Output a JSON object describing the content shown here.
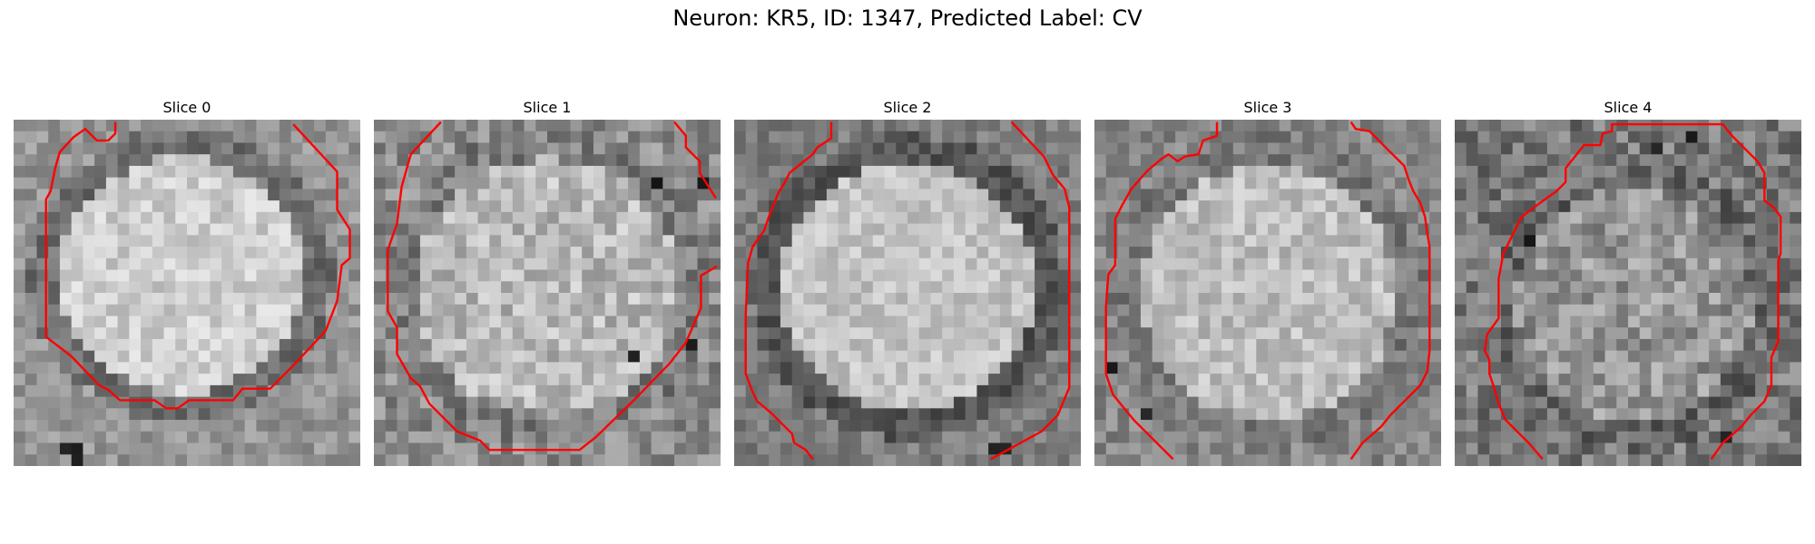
{
  "figure": {
    "title": "Neuron: KR5, ID: 1347, Predicted Label: CV"
  },
  "grid": {
    "cells": 30
  },
  "contour_color": "#ff0000",
  "slices": [
    {
      "label": "Slice 0",
      "seed": 11,
      "blob": {
        "cx": 14.5,
        "cy": 13.5,
        "rx": 12.5,
        "ry": 12,
        "ring": true,
        "bright": 205,
        "bg": 150,
        "noise": 28
      },
      "dark_spots": [
        [
          5,
          28
        ],
        [
          4,
          28
        ],
        [
          5,
          29
        ]
      ],
      "contours": [
        [
          [
            8.8,
            0.2
          ],
          [
            8.8,
            1.2
          ],
          [
            8.2,
            1.8
          ],
          [
            7.2,
            1.8
          ],
          [
            6.2,
            0.8
          ],
          [
            5.2,
            1.5
          ],
          [
            4,
            2.8
          ],
          [
            3.6,
            4.2
          ],
          [
            3.2,
            6.2
          ],
          [
            2.8,
            6.9
          ],
          [
            2.8,
            18.8
          ],
          [
            5,
            20.5
          ],
          [
            7.4,
            23
          ],
          [
            8.2,
            23.4
          ],
          [
            9.2,
            24.3
          ],
          [
            12.2,
            24.3
          ],
          [
            13.2,
            25
          ],
          [
            14.2,
            25
          ],
          [
            15.2,
            24.3
          ],
          [
            19,
            24.3
          ],
          [
            19.8,
            23.3
          ],
          [
            22.2,
            23.3
          ],
          [
            24.2,
            21.3
          ],
          [
            27,
            18.3
          ],
          [
            28,
            15.7
          ],
          [
            28.4,
            12.6
          ],
          [
            29.1,
            12
          ],
          [
            29.1,
            9.5
          ],
          [
            28,
            7.8
          ],
          [
            28,
            4.5
          ],
          [
            24.2,
            0.4
          ]
        ]
      ]
    },
    {
      "label": "Slice 1",
      "seed": 23,
      "blob": {
        "cx": 15,
        "cy": 14.5,
        "rx": 13.5,
        "ry": 13,
        "ring": false,
        "bright": 185,
        "bg": 140,
        "noise": 38
      },
      "dark_spots": [
        [
          24,
          5
        ],
        [
          28,
          5
        ],
        [
          22,
          20
        ],
        [
          27,
          19
        ]
      ],
      "contours": [
        [
          [
            5.8,
            0.2
          ],
          [
            3.2,
            3
          ],
          [
            2.4,
            5.8
          ],
          [
            2,
            9
          ],
          [
            1.2,
            11.3
          ],
          [
            1.2,
            16.6
          ],
          [
            2,
            18
          ],
          [
            2,
            20.3
          ],
          [
            3.2,
            22.4
          ],
          [
            4,
            23.1
          ],
          [
            4.8,
            24.6
          ],
          [
            7.2,
            27
          ],
          [
            9.2,
            27.8
          ],
          [
            10,
            28.6
          ],
          [
            17.8,
            28.6
          ],
          [
            19.2,
            27.5
          ],
          [
            22.6,
            24.2
          ],
          [
            25.6,
            21.1
          ],
          [
            27,
            19.3
          ],
          [
            28.3,
            16.3
          ],
          [
            28.3,
            13.5
          ],
          [
            29.7,
            12.7
          ]
        ],
        [
          [
            26,
            0.2
          ],
          [
            27,
            1.4
          ],
          [
            27,
            2.4
          ],
          [
            28.2,
            3.6
          ],
          [
            28.2,
            4.6
          ],
          [
            29.6,
            6.8
          ]
        ]
      ]
    },
    {
      "label": "Slice 2",
      "seed": 37,
      "blob": {
        "cx": 15,
        "cy": 14.5,
        "rx": 13,
        "ry": 12.5,
        "ring": true,
        "bright": 195,
        "bg": 125,
        "noise": 26
      },
      "dark_spots": [
        [
          22,
          28
        ],
        [
          23,
          28
        ]
      ],
      "contours": [
        [
          [
            8.4,
            0.2
          ],
          [
            8.4,
            1.6
          ],
          [
            7.8,
            2
          ],
          [
            7.2,
            2.4
          ],
          [
            6.8,
            3
          ],
          [
            4.8,
            4.6
          ],
          [
            4.4,
            5.4
          ],
          [
            3.8,
            6.4
          ],
          [
            3,
            8.4
          ],
          [
            2.6,
            9.6
          ],
          [
            1.6,
            11
          ],
          [
            1.2,
            12.4
          ],
          [
            1,
            17
          ],
          [
            1,
            22
          ],
          [
            1.6,
            23.6
          ],
          [
            2,
            24.4
          ],
          [
            3.2,
            25.4
          ],
          [
            4.2,
            26.4
          ],
          [
            5,
            27.2
          ],
          [
            5.2,
            28
          ],
          [
            6.2,
            28.6
          ],
          [
            6.8,
            29.4
          ]
        ],
        [
          [
            24,
            0.2
          ],
          [
            26.8,
            3.2
          ],
          [
            27.6,
            4.8
          ],
          [
            28.6,
            6
          ],
          [
            29,
            7.6
          ],
          [
            29,
            23.2
          ],
          [
            28,
            25.6
          ],
          [
            26.6,
            27
          ],
          [
            22.2,
            29.4
          ]
        ]
      ]
    },
    {
      "label": "Slice 3",
      "seed": 53,
      "blob": {
        "cx": 15,
        "cy": 15,
        "rx": 13,
        "ry": 13,
        "ring": false,
        "bright": 190,
        "bg": 135,
        "noise": 30
      },
      "dark_spots": [
        [
          1,
          21
        ],
        [
          4,
          25
        ]
      ],
      "contours": [
        [
          [
            10.6,
            0.2
          ],
          [
            10.6,
            1.4
          ],
          [
            9.4,
            1.8
          ],
          [
            9,
            3
          ],
          [
            7.8,
            3.2
          ],
          [
            7.2,
            3.6
          ],
          [
            6.4,
            3
          ],
          [
            5.8,
            3.4
          ],
          [
            4.6,
            4.4
          ],
          [
            3.2,
            6
          ],
          [
            2.4,
            7.4
          ],
          [
            1.8,
            8.6
          ],
          [
            1.8,
            12.6
          ],
          [
            1.2,
            13.4
          ],
          [
            1,
            16.2
          ],
          [
            1,
            22
          ],
          [
            1.6,
            23.8
          ],
          [
            2.4,
            24.8
          ],
          [
            3.4,
            26
          ],
          [
            4.4,
            27
          ],
          [
            5.6,
            28.2
          ],
          [
            6.8,
            29.4
          ]
        ],
        [
          [
            22.2,
            0.2
          ],
          [
            22.6,
            0.8
          ],
          [
            23.8,
            1
          ],
          [
            24.8,
            2
          ],
          [
            25.8,
            3
          ],
          [
            26.8,
            4
          ],
          [
            27.2,
            5.2
          ],
          [
            27.6,
            6.2
          ],
          [
            28.2,
            7.2
          ],
          [
            28.6,
            8.4
          ],
          [
            28.8,
            9.8
          ],
          [
            29,
            11
          ],
          [
            29,
            20
          ],
          [
            28.8,
            21.8
          ],
          [
            28.2,
            23
          ],
          [
            27.4,
            23.8
          ],
          [
            26.8,
            24.4
          ],
          [
            25.6,
            25.6
          ],
          [
            24.8,
            26.6
          ],
          [
            23.2,
            28
          ],
          [
            22.2,
            29.4
          ]
        ]
      ]
    },
    {
      "label": "Slice 4",
      "seed": 71,
      "blob": {
        "cx": 15.5,
        "cy": 16,
        "rx": 12,
        "ry": 12,
        "ring": false,
        "bright": 150,
        "bg": 120,
        "noise": 42
      },
      "dark_spots": [
        [
          20,
          1
        ],
        [
          17,
          2
        ],
        [
          6,
          10
        ],
        [
          23,
          27
        ]
      ],
      "contours": [
        [
          [
            7.6,
            29.4
          ],
          [
            6.4,
            28
          ],
          [
            4.4,
            26
          ],
          [
            3.8,
            24.6
          ],
          [
            3.4,
            23.2
          ],
          [
            3,
            22
          ],
          [
            3,
            20.8
          ],
          [
            2.6,
            20
          ],
          [
            2.8,
            18.6
          ],
          [
            3.8,
            17.2
          ],
          [
            3.8,
            13.8
          ],
          [
            4.2,
            11.6
          ],
          [
            5.2,
            9.6
          ],
          [
            5.8,
            8.4
          ],
          [
            6.6,
            7.8
          ],
          [
            7.4,
            7.2
          ],
          [
            8.8,
            6.2
          ],
          [
            9.6,
            5.4
          ],
          [
            9.6,
            4.2
          ],
          [
            10.4,
            3.2
          ],
          [
            11.2,
            2.2
          ],
          [
            12.6,
            2.2
          ],
          [
            12.8,
            1.2
          ],
          [
            13.6,
            1
          ],
          [
            13.6,
            0.4
          ],
          [
            23.2,
            0.4
          ],
          [
            24,
            1.4
          ],
          [
            25.2,
            2.6
          ],
          [
            26.2,
            3.6
          ],
          [
            26.8,
            4.6
          ],
          [
            26.8,
            7
          ],
          [
            27.6,
            7.6
          ],
          [
            28.2,
            8.4
          ],
          [
            28.2,
            11.6
          ],
          [
            28,
            12.2
          ],
          [
            28,
            19.2
          ],
          [
            27.4,
            20.6
          ],
          [
            27.4,
            23
          ],
          [
            26.8,
            24.4
          ],
          [
            25.6,
            25.6
          ],
          [
            24.8,
            26.6
          ],
          [
            23.2,
            28
          ],
          [
            22.2,
            29.4
          ]
        ]
      ]
    }
  ]
}
